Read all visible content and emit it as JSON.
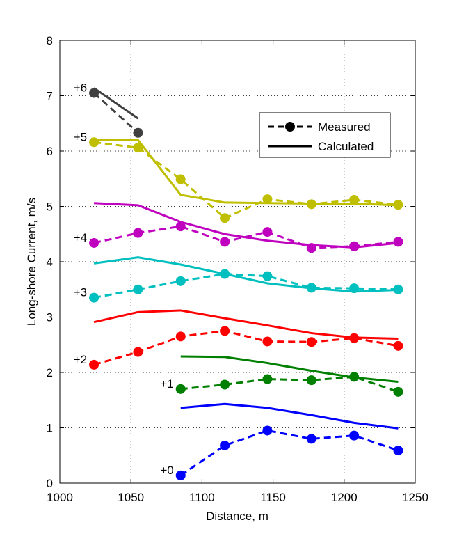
{
  "chart_data": {
    "type": "line",
    "xlabel": "Distance, m",
    "ylabel": "Long-shore Current, m/s",
    "xlim": [
      1000,
      1250
    ],
    "ylim": [
      0,
      8
    ],
    "xticks": [
      "1000",
      "1050",
      "1100",
      "1150",
      "1200",
      "1250"
    ],
    "yticks": [
      "0",
      "1",
      "2",
      "3",
      "4",
      "5",
      "6",
      "7",
      "8"
    ],
    "grid": true,
    "legend": {
      "position": "top-right",
      "measured_label": "Measured",
      "calculated_label": "Calculated"
    },
    "groups": [
      {
        "label": "+0",
        "color": "#0000ff",
        "measured": {
          "x": [
            1085,
            1116,
            1146,
            1177,
            1207,
            1238
          ],
          "y": [
            0.14,
            0.68,
            0.95,
            0.8,
            0.86,
            0.59
          ]
        },
        "calculated": {
          "x": [
            1085,
            1116,
            1146,
            1177,
            1207,
            1238
          ],
          "y": [
            1.36,
            1.43,
            1.36,
            1.23,
            1.09,
            0.99
          ]
        }
      },
      {
        "label": "+1",
        "color": "#008000",
        "measured": {
          "x": [
            1085,
            1116,
            1146,
            1177,
            1207,
            1238
          ],
          "y": [
            1.7,
            1.78,
            1.88,
            1.86,
            1.92,
            1.65
          ]
        },
        "calculated": {
          "x": [
            1085,
            1116,
            1146,
            1177,
            1207,
            1238
          ],
          "y": [
            2.29,
            2.28,
            2.17,
            2.03,
            1.91,
            1.83
          ]
        }
      },
      {
        "label": "+2",
        "color": "#ff0000",
        "measured": {
          "x": [
            1024,
            1055,
            1085,
            1116,
            1146,
            1177,
            1207,
            1238
          ],
          "y": [
            2.14,
            2.37,
            2.65,
            2.75,
            2.56,
            2.55,
            2.62,
            2.48
          ]
        },
        "calculated": {
          "x": [
            1024,
            1055,
            1085,
            1116,
            1146,
            1177,
            1207,
            1238
          ],
          "y": [
            2.91,
            3.09,
            3.12,
            2.98,
            2.85,
            2.71,
            2.63,
            2.61
          ]
        }
      },
      {
        "label": "+3",
        "color": "#00bfbf",
        "measured": {
          "x": [
            1024,
            1055,
            1085,
            1116,
            1146,
            1177,
            1207,
            1238
          ],
          "y": [
            3.35,
            3.5,
            3.65,
            3.78,
            3.74,
            3.53,
            3.52,
            3.5
          ]
        },
        "calculated": {
          "x": [
            1024,
            1055,
            1085,
            1116,
            1146,
            1177,
            1207,
            1238
          ],
          "y": [
            3.97,
            4.08,
            3.95,
            3.78,
            3.61,
            3.52,
            3.46,
            3.49
          ]
        }
      },
      {
        "label": "+4",
        "color": "#bf00bf",
        "measured": {
          "x": [
            1024,
            1055,
            1085,
            1116,
            1146,
            1177,
            1207,
            1238
          ],
          "y": [
            4.34,
            4.52,
            4.64,
            4.36,
            4.54,
            4.25,
            4.28,
            4.36
          ]
        },
        "calculated": {
          "x": [
            1024,
            1055,
            1085,
            1116,
            1146,
            1177,
            1207,
            1238
          ],
          "y": [
            5.06,
            5.02,
            4.72,
            4.5,
            4.38,
            4.3,
            4.26,
            4.34
          ]
        }
      },
      {
        "label": "+5",
        "color": "#bfbf00",
        "measured": {
          "x": [
            1024,
            1055,
            1085,
            1116,
            1146,
            1177,
            1207,
            1238
          ],
          "y": [
            6.16,
            6.06,
            5.49,
            4.79,
            5.13,
            5.04,
            5.12,
            5.03
          ]
        },
        "calculated": {
          "x": [
            1024,
            1055,
            1085,
            1116,
            1146,
            1177,
            1207,
            1238
          ],
          "y": [
            6.2,
            6.2,
            5.21,
            5.07,
            5.06,
            5.05,
            5.05,
            5.02
          ]
        }
      },
      {
        "label": "+6",
        "color": "#404040",
        "measured": {
          "x": [
            1024,
            1055
          ],
          "y": [
            7.05,
            6.33
          ]
        },
        "calculated": {
          "x": [
            1024,
            1055
          ],
          "y": [
            7.14,
            6.59
          ]
        }
      }
    ]
  }
}
